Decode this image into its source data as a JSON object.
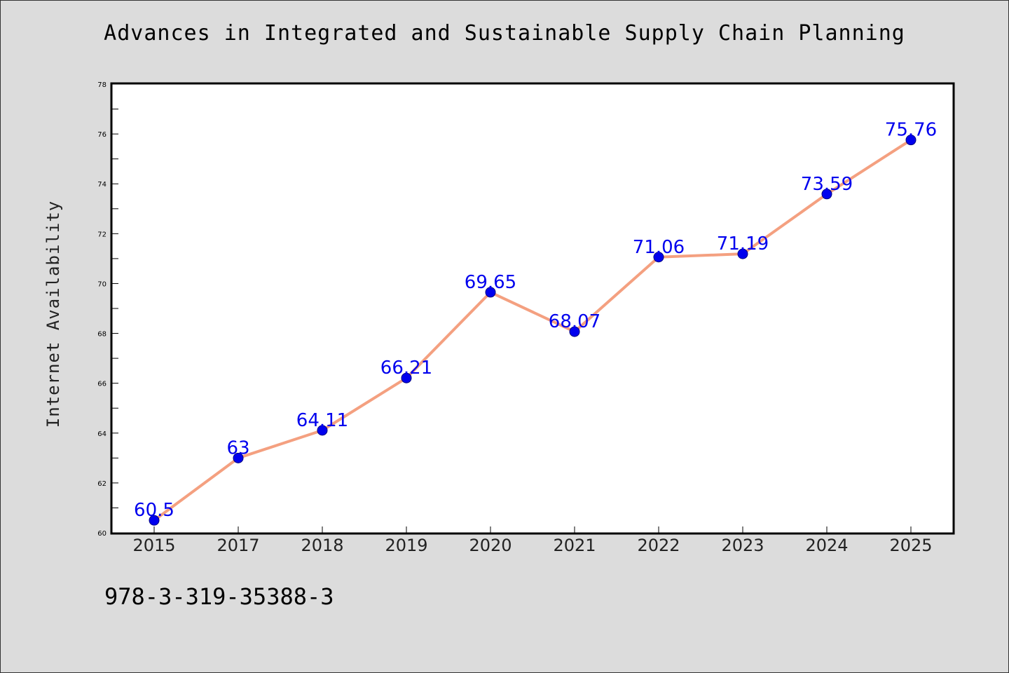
{
  "chart_data": {
    "type": "line",
    "title": "Advances in Integrated and Sustainable Supply Chain Planning",
    "xlabel": "",
    "ylabel": "Internet Availability",
    "categories": [
      "2015",
      "2017",
      "2018",
      "2019",
      "2020",
      "2021",
      "2022",
      "2023",
      "2024",
      "2025"
    ],
    "series": [
      {
        "values": [
          60.5,
          63,
          64.11,
          66.21,
          69.65,
          68.07,
          71.06,
          71.19,
          73.59,
          75.76
        ],
        "labels": [
          "60.5",
          "63",
          "64.11",
          "66.21",
          "69.65",
          "68.07",
          "71.06",
          "71.19",
          "73.59",
          "75.76"
        ]
      }
    ],
    "ylim": [
      60,
      78
    ],
    "yticks": [
      "60",
      "62",
      "64",
      "66",
      "68",
      "70",
      "72",
      "74",
      "76",
      "78"
    ],
    "grid": false,
    "colors": {
      "line": "#f4a080",
      "marker": "#0000ee",
      "marker_edge": "#000080",
      "data_label": "#0000ee"
    }
  },
  "footer_text": "978-3-319-35388-3"
}
